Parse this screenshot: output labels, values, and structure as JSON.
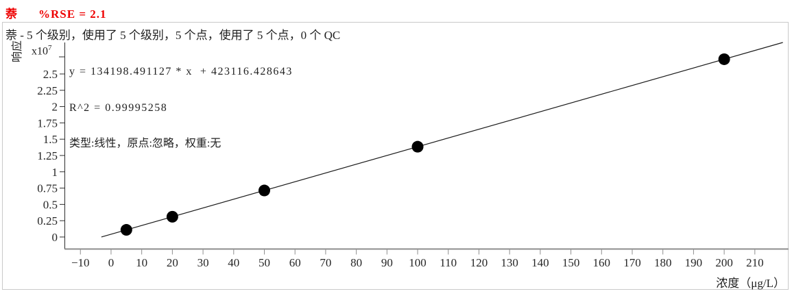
{
  "header": {
    "compound": "萘",
    "rse": "%RSE = 2.1",
    "accent_color": "#ee0000"
  },
  "panel": {
    "summary": "萘 - 5 个级别，使用了 5 个级别，5 个点，使用了 5 个点，0 个 QC",
    "equation": "y = 134198.491127 * x  + 423116.428643",
    "r_squared": "R^2 = 0.99995258",
    "fit_description": "类型:线性，原点:忽略，权重:无"
  },
  "chart_data": {
    "type": "scatter",
    "x_label": "浓度（μg/L）",
    "y_label": "响应",
    "y_scale_base": "x10",
    "y_scale_exponent": "7",
    "fit": {
      "slope": 134198.491127,
      "intercept": 423116.428643,
      "r2": 0.99995258,
      "fit_type": "线性",
      "origin": "忽略",
      "weight": "无"
    },
    "points": [
      {
        "x": 5,
        "y": 1094109
      },
      {
        "x": 20,
        "y": 3107086
      },
      {
        "x": 50,
        "y": 7133041
      },
      {
        "x": 100,
        "y": 13842965
      },
      {
        "x": 200,
        "y": 27262815
      }
    ],
    "x_ticks": [
      -10,
      0,
      10,
      20,
      30,
      40,
      50,
      60,
      70,
      80,
      90,
      100,
      110,
      120,
      130,
      140,
      150,
      160,
      170,
      180,
      190,
      200,
      210
    ],
    "x_tick_labels": [
      "−10",
      "0",
      "10",
      "20",
      "30",
      "40",
      "50",
      "60",
      "70",
      "80",
      "90",
      "100",
      "110",
      "120",
      "130",
      "140",
      "150",
      "160",
      "170",
      "180",
      "190",
      "200",
      "210"
    ],
    "y_tick_labels": [
      "0",
      "0.25",
      "0.5",
      "0.75",
      "1",
      "1.25",
      "1.5",
      "1.75",
      "2",
      "2.25",
      "2.5"
    ],
    "y_tick_multiplier": 10000000,
    "x_range": [
      -15.2,
      221.0
    ],
    "y_range": [
      -1790000,
      29830000
    ],
    "grid": false,
    "point_color": "#000000",
    "line_color": "#1a1a1a",
    "x_axis_color": "#8e8e8e",
    "y_axis_color": "#2b2b2b"
  }
}
